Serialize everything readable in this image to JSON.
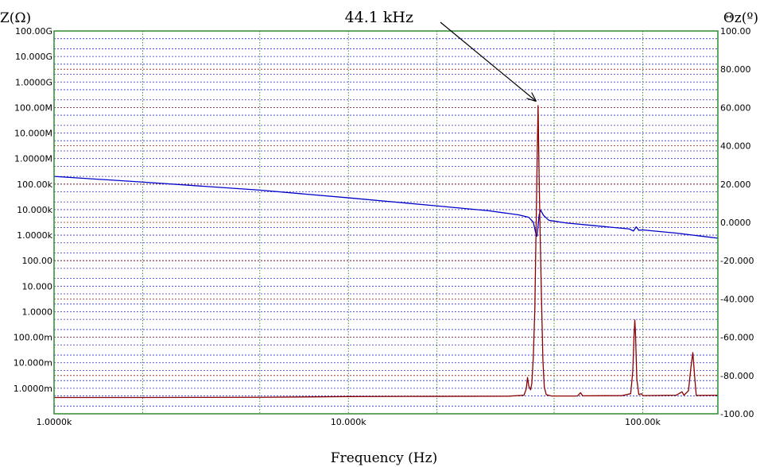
{
  "chart_data": {
    "type": "line",
    "title": "",
    "xlabel": "Frequency (Hz)",
    "ylabel_left": "Z(Ω)",
    "ylabel_right": "Θz(º)",
    "x_scale": "log",
    "xlim": [
      1000,
      180000
    ],
    "x_ticks": [
      {
        "value": 1000,
        "label": "1.0000k"
      },
      {
        "value": 10000,
        "label": "10.000k"
      },
      {
        "value": 100000,
        "label": "100.00k"
      }
    ],
    "y_left_scale": "log",
    "y_left_lim": [
      0.0001,
      100000000000
    ],
    "y_left_ticks": [
      {
        "value": 100000000000,
        "label": "100.00G"
      },
      {
        "value": 10000000000,
        "label": "10.000G"
      },
      {
        "value": 1000000000,
        "label": "1.0000G"
      },
      {
        "value": 100000000,
        "label": "100.00M"
      },
      {
        "value": 10000000,
        "label": "10.000M"
      },
      {
        "value": 1000000,
        "label": "1.0000M"
      },
      {
        "value": 100000,
        "label": "100.00k"
      },
      {
        "value": 10000,
        "label": "10.000k"
      },
      {
        "value": 1000,
        "label": "1.0000k"
      },
      {
        "value": 100,
        "label": "100.00"
      },
      {
        "value": 10,
        "label": "10.000"
      },
      {
        "value": 1,
        "label": "1.0000"
      },
      {
        "value": 0.1,
        "label": "100.00m"
      },
      {
        "value": 0.01,
        "label": "10.000m"
      },
      {
        "value": 0.001,
        "label": "1.0000m"
      }
    ],
    "y_right_lim": [
      -100,
      100
    ],
    "y_right_ticks": [
      {
        "value": 100,
        "label": "100.00"
      },
      {
        "value": 80,
        "label": "80.000"
      },
      {
        "value": 60,
        "label": "60.000"
      },
      {
        "value": 40,
        "label": "40.000"
      },
      {
        "value": 20,
        "label": "20.000"
      },
      {
        "value": 0,
        "label": "0.0000"
      },
      {
        "value": -20,
        "label": "-20.000"
      },
      {
        "value": -40,
        "label": "-40.000"
      },
      {
        "value": -60,
        "label": "-60.000"
      },
      {
        "value": -80,
        "label": "-80.000"
      },
      {
        "value": -100,
        "label": "-100.00"
      }
    ],
    "grid": true,
    "annotations": [
      {
        "text": "44.1 kHz",
        "x": 44100
      }
    ],
    "series": [
      {
        "axis": "left",
        "color": "#0000cc",
        "points": [
          [
            1000,
            200000
          ],
          [
            2000,
            120000
          ],
          [
            5000,
            58000
          ],
          [
            10000,
            29000
          ],
          [
            20000,
            14000
          ],
          [
            30000,
            9000
          ],
          [
            38000,
            6200
          ],
          [
            41000,
            5000
          ],
          [
            42500,
            3200
          ],
          [
            43300,
            1200
          ],
          [
            43700,
            900
          ],
          [
            44000,
            1800
          ],
          [
            44500,
            6500
          ],
          [
            45000,
            9500
          ],
          [
            46000,
            6000
          ],
          [
            48000,
            3800
          ],
          [
            55000,
            3000
          ],
          [
            70000,
            2300
          ],
          [
            90000,
            1750
          ],
          [
            93000,
            1450
          ],
          [
            95000,
            2100
          ],
          [
            97000,
            1550
          ],
          [
            100000,
            1600
          ],
          [
            130000,
            1200
          ],
          [
            180000,
            760
          ]
        ]
      },
      {
        "axis": "right",
        "color": "#8b0000",
        "points": [
          [
            1000,
            -91.5
          ],
          [
            2000,
            -91.5
          ],
          [
            5000,
            -91.4
          ],
          [
            10000,
            -91
          ],
          [
            20000,
            -90.9
          ],
          [
            35000,
            -90.8
          ],
          [
            39500,
            -90.3
          ],
          [
            40200,
            -87
          ],
          [
            40600,
            -81
          ],
          [
            41000,
            -85.5
          ],
          [
            41600,
            -87.5
          ],
          [
            42000,
            -84
          ],
          [
            42500,
            -70
          ],
          [
            43000,
            -45
          ],
          [
            43500,
            5
          ],
          [
            43800,
            35
          ],
          [
            44100,
            61
          ],
          [
            44400,
            30
          ],
          [
            44800,
            -5
          ],
          [
            45300,
            -40
          ],
          [
            45800,
            -72
          ],
          [
            46300,
            -86
          ],
          [
            47000,
            -90
          ],
          [
            49000,
            -90.7
          ],
          [
            60000,
            -90.7
          ],
          [
            61500,
            -89
          ],
          [
            62500,
            -90.6
          ],
          [
            85000,
            -90.5
          ],
          [
            91000,
            -89.5
          ],
          [
            92500,
            -78
          ],
          [
            93500,
            -58
          ],
          [
            94000,
            -51
          ],
          [
            94500,
            -58
          ],
          [
            95500,
            -82
          ],
          [
            97000,
            -90
          ],
          [
            99000,
            -89.5
          ],
          [
            100000,
            -90.5
          ],
          [
            130000,
            -90.3
          ],
          [
            136000,
            -88.5
          ],
          [
            138000,
            -90.3
          ],
          [
            143000,
            -88
          ],
          [
            146000,
            -75
          ],
          [
            148000,
            -68
          ],
          [
            150000,
            -80
          ],
          [
            152000,
            -90.4
          ],
          [
            180000,
            -90.3
          ]
        ]
      }
    ]
  }
}
